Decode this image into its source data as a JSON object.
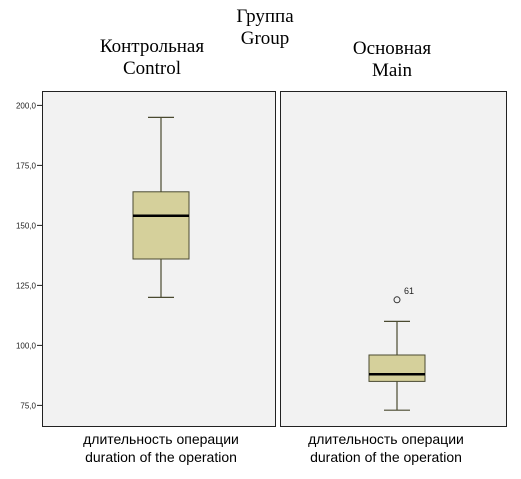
{
  "header": {
    "group_ru": "Группа",
    "group_en": "Group",
    "col1_ru": "Контрольная",
    "col1_en": "Control",
    "col2_ru": "Основная",
    "col2_en": "Main"
  },
  "xlabels": {
    "ru": "длительность операции",
    "en": "duration of the operation"
  },
  "chart_data": {
    "type": "box",
    "title": "",
    "ylabel": "",
    "ylim": [
      66,
      206
    ],
    "yticks": [
      {
        "value": 75,
        "label": "75,0"
      },
      {
        "value": 100,
        "label": "100,0"
      },
      {
        "value": 125,
        "label": "125,0"
      },
      {
        "value": 150,
        "label": "150,0"
      },
      {
        "value": 175,
        "label": "175,0"
      },
      {
        "value": 200,
        "label": "200,0"
      }
    ],
    "grid": false,
    "boxes": [
      {
        "group": "Контрольная / Control",
        "min": 120,
        "q1": 136,
        "median": 154,
        "q3": 164,
        "max": 195,
        "outliers": []
      },
      {
        "group": "Основная / Main",
        "min": 73,
        "q1": 85,
        "median": 88,
        "q3": 96,
        "max": 110,
        "outliers": [
          {
            "value": 119,
            "label": "61"
          }
        ]
      }
    ],
    "colors": {
      "box_fill": "#d5d09b",
      "box_stroke": "#4a4a30",
      "panel_bg": "#f2f2f2"
    }
  }
}
